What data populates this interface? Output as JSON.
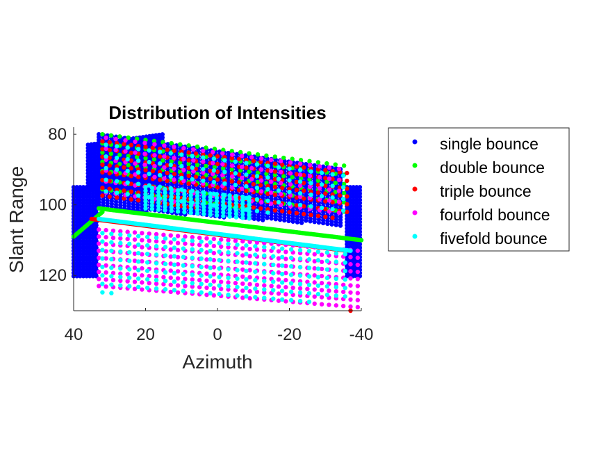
{
  "chart_data": {
    "type": "scatter",
    "title": "Distribution of Intensities",
    "xlabel": "Azimuth",
    "ylabel": "Slant Range",
    "xlim": [
      40,
      -40
    ],
    "ylim": [
      130,
      78
    ],
    "x_reversed": true,
    "y_reversed": true,
    "x_ticks": [
      40,
      20,
      0,
      -20,
      -40
    ],
    "x_tick_labels": [
      "40",
      "20",
      "0",
      "-20",
      "-40"
    ],
    "y_ticks": [
      80,
      100,
      120
    ],
    "y_tick_labels": [
      "80",
      "100",
      "120"
    ],
    "grid": false,
    "legend_position": "outside-right",
    "series": [
      {
        "name": "single bounce",
        "color": "#0000ff",
        "regions": [
          {
            "kind": "slab",
            "x": [
              33,
              -35
            ],
            "y_top_start": 80,
            "y_top_end": 90,
            "y_bottom_start": 101,
            "y_bottom_end": 106,
            "dx": 1.2,
            "dy": 0.8
          },
          {
            "kind": "rect",
            "x": [
              40,
              33
            ],
            "y": [
              95,
              121
            ],
            "dx": 0.9,
            "dy": 0.9
          },
          {
            "kind": "rect",
            "x": [
              -36,
              -40
            ],
            "y": [
              95,
              121
            ],
            "dx": 0.9,
            "dy": 0.9
          },
          {
            "kind": "slab",
            "x": [
              36,
              15
            ],
            "y_top_start": 83,
            "y_top_end": 80,
            "y_bottom_start": 96,
            "y_bottom_end": 96,
            "dx": 0.9,
            "dy": 0.9
          }
        ]
      },
      {
        "name": "double bounce",
        "color": "#00ff00",
        "regions": [
          {
            "kind": "slab",
            "x": [
              32,
              -36
            ],
            "y_top_start": 80,
            "y_top_end": 89,
            "y_bottom_start": 98,
            "y_bottom_end": 103,
            "dx": 2.4,
            "dy": 2.6
          },
          {
            "kind": "line",
            "x": [
              40,
              32
            ],
            "y": [
              109,
              102
            ]
          },
          {
            "kind": "line",
            "x": [
              33,
              -40
            ],
            "y": [
              101,
              110
            ]
          }
        ]
      },
      {
        "name": "triple bounce",
        "color": "#ff0000",
        "regions": [
          {
            "kind": "slab",
            "x": [
              32,
              -36
            ],
            "y_top_start": 82,
            "y_top_end": 91,
            "y_bottom_start": 99,
            "y_bottom_end": 104,
            "dx": 2.0,
            "dy": 2.2
          },
          {
            "kind": "line",
            "x": [
              35,
              -36
            ],
            "y": [
              104,
              113
            ]
          },
          {
            "kind": "point",
            "x": -37,
            "y": 130
          }
        ]
      },
      {
        "name": "fourfold bounce",
        "color": "#ff00ff",
        "regions": [
          {
            "kind": "slab",
            "x": [
              31,
              -35
            ],
            "y_top_start": 81,
            "y_top_end": 90,
            "y_bottom_start": 98,
            "y_bottom_end": 103,
            "dx": 2.7,
            "dy": 3.1
          },
          {
            "kind": "slab",
            "x": [
              33,
              -39
            ],
            "y_top_start": 107,
            "y_top_end": 113,
            "y_bottom_start": 124,
            "y_bottom_end": 129,
            "dx": 2.0,
            "dy": 2.0
          }
        ]
      },
      {
        "name": "fivefold bounce",
        "color": "#00ffff",
        "regions": [
          {
            "kind": "slab",
            "x": [
              31,
              -37
            ],
            "y_top_start": 83,
            "y_top_end": 92,
            "y_bottom_start": 99,
            "y_bottom_end": 104,
            "dx": 3.0,
            "dy": 3.3
          },
          {
            "kind": "line",
            "x": [
              33,
              -37
            ],
            "y": [
              104,
              113
            ]
          },
          {
            "kind": "slab",
            "x": [
              32,
              -36
            ],
            "y_top_start": 108,
            "y_top_end": 114,
            "y_bottom_start": 125,
            "y_bottom_end": 128,
            "dx": 2.5,
            "dy": 2.4
          },
          {
            "kind": "slab",
            "x": [
              20,
              -10
            ],
            "y_top_start": 95,
            "y_top_end": 98,
            "y_bottom_start": 101,
            "y_bottom_end": 104,
            "dx": 1.8,
            "dy": 1.0
          }
        ]
      }
    ]
  }
}
